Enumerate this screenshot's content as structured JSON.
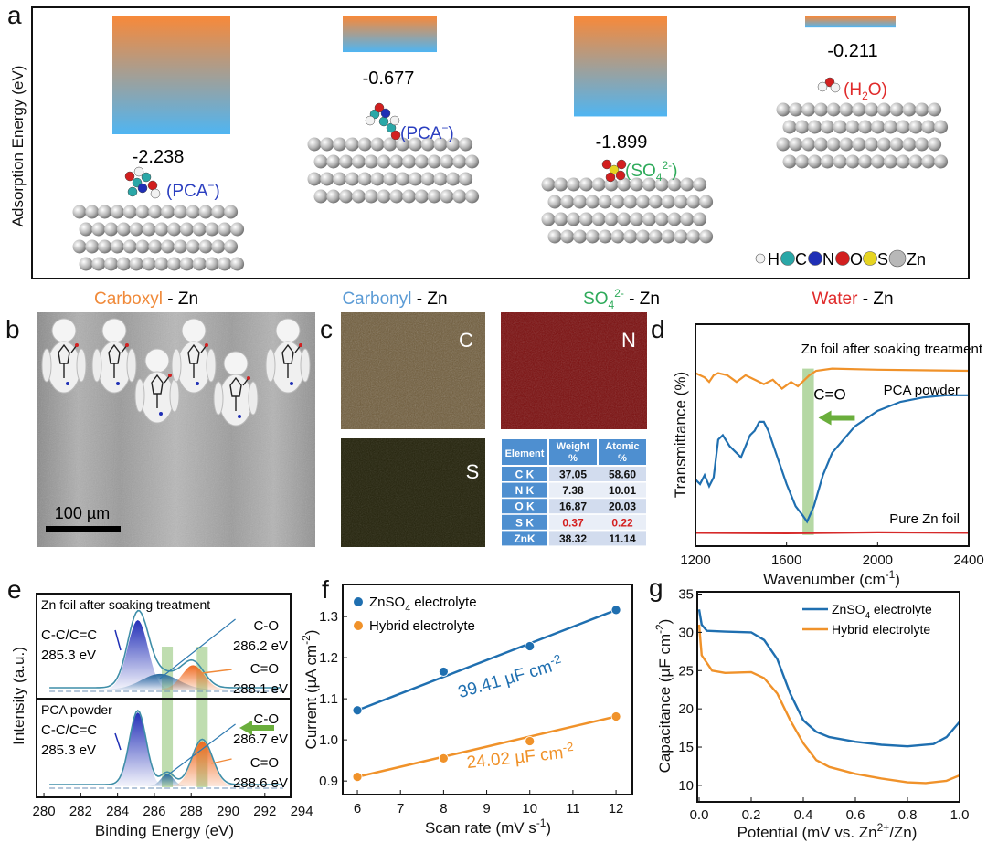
{
  "panels": {
    "a": {
      "label": "a",
      "ylabel": "Adsorption Energy (eV)",
      "systems": [
        {
          "name_colored": "Carboxyl",
          "name_rest": " - Zn",
          "energy": -2.238,
          "energy_label": "-2.238",
          "adsorbate": "PCA",
          "adsorbate_sup": "−",
          "color": "#f08a3a",
          "adsorbate_color": "#2b3fc0"
        },
        {
          "name_colored": "Carbonyl",
          "name_rest": " - Zn",
          "energy": -0.677,
          "energy_label": "-0.677",
          "adsorbate": "PCA",
          "adsorbate_sup": "−",
          "color": "#5b9bd5",
          "adsorbate_color": "#2b3fc0"
        },
        {
          "name_colored": "SO",
          "name_sub": "4",
          "name_sup": "2-",
          "name_rest": " - Zn",
          "energy": -1.899,
          "energy_label": "-1.899",
          "adsorbate": "SO",
          "adsorbate_sub": "4",
          "adsorbate_sup": "2-",
          "color": "#2eaa5a",
          "adsorbate_color": "#2eaa5a"
        },
        {
          "name_colored": "Water",
          "name_rest": " - Zn",
          "energy": -0.211,
          "energy_label": "-0.211",
          "adsorbate": "H",
          "adsorbate_sub": "2",
          "adsorbate_tail": "O",
          "color": "#e02b2b",
          "adsorbate_color": "#e02b2b"
        }
      ],
      "legend": [
        {
          "label": "H",
          "color": "#f2f2f2"
        },
        {
          "label": "C",
          "color": "#2aa7a7"
        },
        {
          "label": "N",
          "color": "#1f2fb5"
        },
        {
          "label": "O",
          "color": "#d21f1f"
        },
        {
          "label": "S",
          "color": "#e6d422"
        },
        {
          "label": "Zn",
          "color": "#b8b8b8"
        }
      ]
    },
    "b": {
      "label": "b",
      "scale_bar": "100 µm"
    },
    "c": {
      "label": "c",
      "maps": [
        {
          "element": "C",
          "color": "#b59a60"
        },
        {
          "element": "N",
          "color": "#b01818"
        },
        {
          "element": "S",
          "color": "#6d6a18"
        }
      ],
      "table": {
        "headers": [
          "Element",
          "Weight",
          "%",
          "Atomic",
          "%"
        ],
        "rows": [
          {
            "element": "C K",
            "weight": "37.05",
            "atomic": "58.60",
            "highlight": false
          },
          {
            "element": "N K",
            "weight": "7.38",
            "atomic": "10.01",
            "highlight": false
          },
          {
            "element": "O K",
            "weight": "16.87",
            "atomic": "20.03",
            "highlight": false
          },
          {
            "element": "S K",
            "weight": "0.37",
            "atomic": "0.22",
            "highlight": true
          },
          {
            "element": "ZnK",
            "weight": "38.32",
            "atomic": "11.14",
            "highlight": false
          }
        ]
      }
    }
  },
  "chart_data": [
    {
      "id": "d",
      "label": "d",
      "type": "line",
      "xlabel": "Wavenumber (cm",
      "xlabel_sup": "-1",
      "xlabel_tail": ")",
      "ylabel": "Transmittance (%)",
      "xlim": [
        1200,
        2400
      ],
      "ylim": [
        0,
        100
      ],
      "xticks": [
        "1200",
        "1600",
        "2000",
        "2400"
      ],
      "band": [
        1670,
        1720
      ],
      "band_label": "C=O",
      "series": [
        {
          "name": "Zn foil after soaking treatment",
          "color": "#f0922a",
          "x": [
            1200,
            1240,
            1260,
            1280,
            1300,
            1340,
            1380,
            1420,
            1460,
            1500,
            1540,
            1580,
            1620,
            1650,
            1700,
            1730,
            1800,
            2000,
            2400
          ],
          "y": [
            78,
            76,
            74,
            77,
            78,
            77,
            74,
            77,
            75,
            73,
            75,
            71,
            74,
            72,
            77,
            79,
            80,
            79.5,
            79
          ]
        },
        {
          "name": "PCA powder",
          "color": "#1f6fb0",
          "x": [
            1200,
            1220,
            1240,
            1260,
            1280,
            1300,
            1320,
            1350,
            1380,
            1400,
            1420,
            1440,
            1460,
            1480,
            1500,
            1520,
            1560,
            1600,
            1640,
            1670,
            1690,
            1720,
            1760,
            1800,
            1900,
            2000,
            2100,
            2200,
            2300,
            2400
          ],
          "y": [
            30,
            28,
            32,
            27,
            31,
            48,
            50,
            45,
            42,
            40,
            45,
            50,
            52,
            56,
            56,
            52,
            40,
            28,
            18,
            14,
            11,
            18,
            32,
            42,
            54,
            61,
            65,
            67,
            68,
            68
          ]
        },
        {
          "name": "Pure Zn foil",
          "color": "#d62a2a",
          "x": [
            1200,
            1600,
            2000,
            2400
          ],
          "y": [
            6,
            5.8,
            6.2,
            6
          ]
        }
      ]
    },
    {
      "id": "e",
      "label": "e",
      "type": "line",
      "xlabel": "Binding Energy (eV)",
      "ylabel": "Intensity (a.u.)",
      "xlim": [
        279.6,
        293.4
      ],
      "xticks": [
        "280",
        "282",
        "284",
        "286",
        "288",
        "290",
        "292",
        "294"
      ],
      "bands": [
        [
          286.4,
          287.0
        ],
        [
          288.3,
          288.9
        ]
      ],
      "subplots": [
        {
          "title": "Zn foil after soaking treatment",
          "peaks": [
            {
              "name": "C-C/C=C",
              "value": "285.3 eV",
              "center": 285.1,
              "amp": 0.8,
              "sigma": 0.55,
              "color": "#2a3fc0"
            },
            {
              "name": "C-O",
              "value": "286.2 eV",
              "center": 286.3,
              "amp": 0.18,
              "sigma": 1.0,
              "color": "#2f6fa0"
            },
            {
              "name": "C=O",
              "value": "288.1 eV",
              "center": 288.1,
              "amp": 0.28,
              "sigma": 0.6,
              "color": "#f07a30"
            }
          ]
        },
        {
          "title": "PCA powder",
          "peaks": [
            {
              "name": "C-C/C=C",
              "value": "285.3 eV",
              "center": 285.1,
              "amp": 0.9,
              "sigma": 0.45,
              "color": "#2a3fc0"
            },
            {
              "name": "C-O",
              "value": "286.7 eV",
              "center": 286.7,
              "amp": 0.15,
              "sigma": 0.35,
              "color": "#2f6fa0"
            },
            {
              "name": "C=O",
              "value": "288.6 eV",
              "center": 288.6,
              "amp": 0.55,
              "sigma": 0.55,
              "color": "#f07a30"
            }
          ]
        }
      ]
    },
    {
      "id": "f",
      "label": "f",
      "type": "scatter",
      "xlabel": "Scan rate (mV s",
      "xlabel_sup": "-1",
      "xlabel_tail": ")",
      "ylabel": "Current (µA cm",
      "ylabel_sup": "-2",
      "ylabel_tail": ")",
      "xlim": [
        5.66,
        12.38
      ],
      "ylim": [
        0.867,
        1.378
      ],
      "xticks": [
        6,
        7,
        8,
        9,
        10,
        11,
        12
      ],
      "yticks": [
        0.9,
        1.0,
        1.1,
        1.2,
        1.3
      ],
      "xtick_labels": [
        "6",
        "7",
        "8",
        "9",
        "10",
        "11",
        "12"
      ],
      "ytick_labels": [
        "0.9",
        "1.0",
        "1.1",
        "1.2",
        "1.3"
      ],
      "series": [
        {
          "name": "ZnSO",
          "name_sub": "4",
          "name_tail": " electrolyte",
          "color": "#1f6fb0",
          "x": [
            6,
            8,
            10,
            12
          ],
          "y": [
            1.072,
            1.166,
            1.228,
            1.316
          ],
          "slope_label": "39.41 µF cm",
          "slope_sup": "-2"
        },
        {
          "name": "Hybrid electrolyte",
          "color": "#f0922a",
          "x": [
            6,
            8,
            10,
            12
          ],
          "y": [
            0.91,
            0.955,
            0.997,
            1.057
          ],
          "slope_label": "24.02 µF cm",
          "slope_sup": "-2"
        }
      ]
    },
    {
      "id": "g",
      "label": "g",
      "type": "line",
      "xlabel": "Potential (mV vs. Zn",
      "xlabel_sup": "2+",
      "xlabel_tail": "/Zn)",
      "ylabel": "Capacitance (µF cm",
      "ylabel_sup": "-2",
      "ylabel_tail": ")",
      "xlim": [
        -0.007,
        1.0
      ],
      "ylim": [
        7.84,
        35.3
      ],
      "xticks": [
        0,
        0.2,
        0.4,
        0.6,
        0.8,
        1.0
      ],
      "yticks": [
        10,
        15,
        20,
        25,
        30,
        35
      ],
      "xtick_labels": [
        "0.0",
        "0.2",
        "0.4",
        "0.6",
        "0.8",
        "1.0"
      ],
      "ytick_labels": [
        "10",
        "15",
        "20",
        "25",
        "30",
        "35"
      ],
      "series": [
        {
          "name": "ZnSO",
          "name_sub": "4",
          "name_tail": " electrolyte",
          "color": "#1f6fb0",
          "x": [
            0,
            0.01,
            0.03,
            0.1,
            0.2,
            0.25,
            0.3,
            0.35,
            0.4,
            0.45,
            0.5,
            0.6,
            0.7,
            0.8,
            0.9,
            0.95,
            1.0
          ],
          "y": [
            33,
            31,
            30.2,
            30.1,
            30,
            29,
            26.5,
            22,
            18.5,
            17,
            16.3,
            15.7,
            15.3,
            15.1,
            15.4,
            16.3,
            18.3
          ]
        },
        {
          "name": "Hybrid electrolyte",
          "color": "#f0922a",
          "x": [
            0,
            0.01,
            0.05,
            0.1,
            0.2,
            0.25,
            0.3,
            0.35,
            0.4,
            0.45,
            0.5,
            0.6,
            0.7,
            0.8,
            0.87,
            0.95,
            1.0
          ],
          "y": [
            31,
            27,
            25,
            24.7,
            24.8,
            24,
            22,
            18.5,
            15.5,
            13.3,
            12.4,
            11.5,
            10.9,
            10.4,
            10.3,
            10.6,
            11.3
          ]
        }
      ]
    }
  ]
}
